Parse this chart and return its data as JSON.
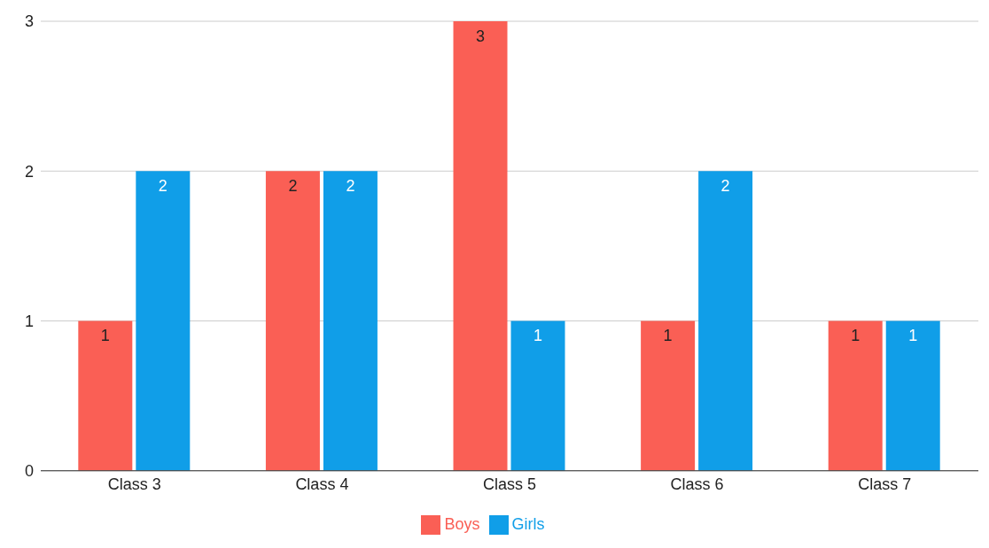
{
  "chart_data": {
    "type": "bar",
    "categories": [
      "Class 3",
      "Class 4",
      "Class 5",
      "Class 6",
      "Class 7"
    ],
    "series": [
      {
        "name": "Boys",
        "color": "#fa5f55",
        "values": [
          1,
          2,
          3,
          1,
          1
        ]
      },
      {
        "name": "Girls",
        "color": "#109ee8",
        "values": [
          2,
          2,
          1,
          2,
          1
        ]
      }
    ],
    "ylim": [
      0,
      3
    ],
    "yticks": [
      0,
      1,
      2,
      3
    ],
    "grid": "y",
    "legend": "bottom",
    "data_labels": true
  }
}
